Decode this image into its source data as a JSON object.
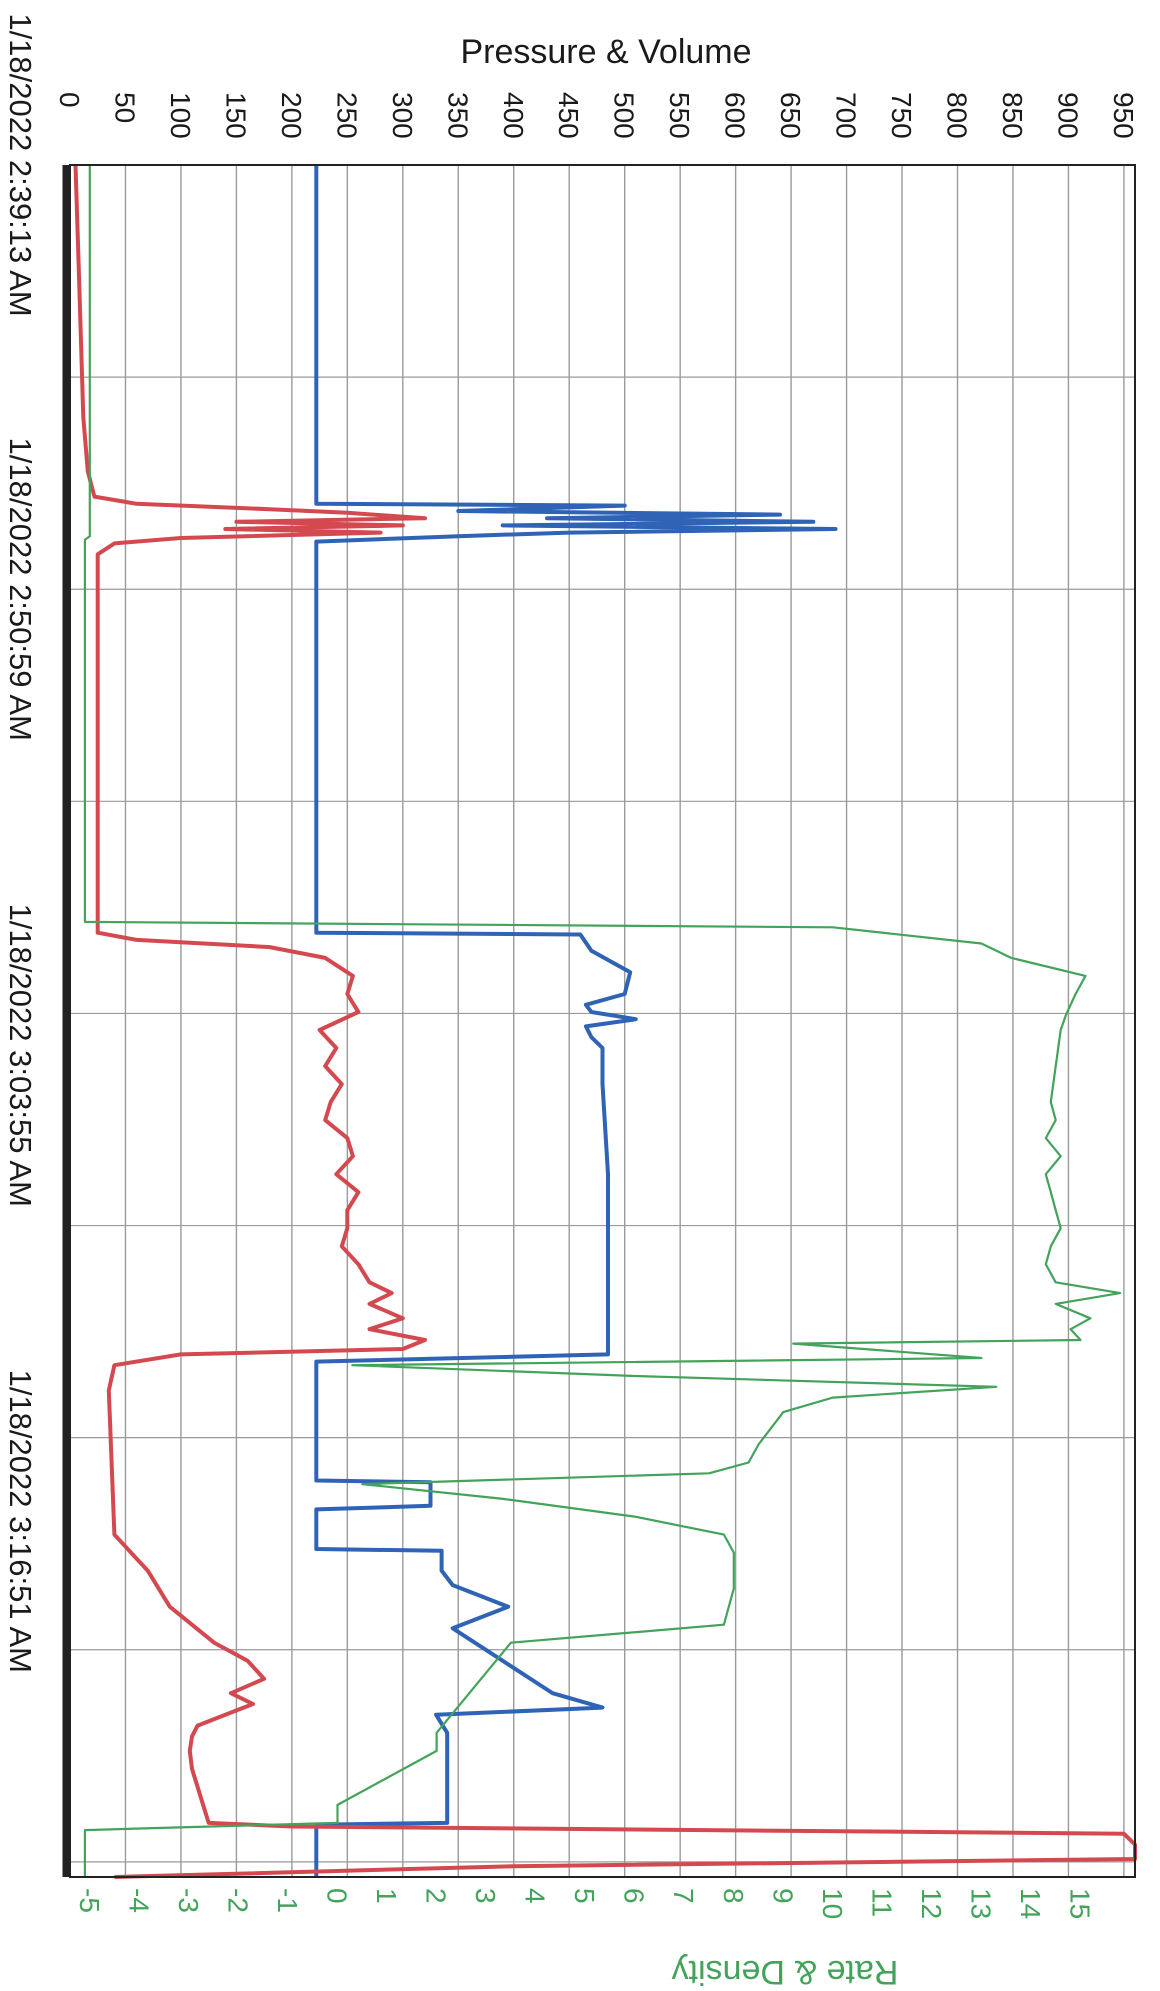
{
  "colors": {
    "pressure": "#2f63b6",
    "volume": "#d4494f",
    "rate_density": "#43a35a",
    "grid": "#9a9a9a",
    "frame": "#222222",
    "text": "#1a1a1a"
  },
  "chart_data": {
    "type": "line",
    "title": "",
    "orientation": "rotated 90° clockwise (time runs top to bottom)",
    "x_axis": {
      "tick_labels": [
        "1/18/2022 2:39:13 AM",
        "1/18/2022 2:50:59 AM",
        "1/18/2022 3:03:55 AM",
        "1/18/2022 3:16:51 AM"
      ],
      "tick_minutes": [
        0,
        11.77,
        24.7,
        37.63
      ],
      "range_minutes": [
        0,
        47.5
      ]
    },
    "primary_axis": {
      "label": "Pressure & Volume",
      "range": [
        0,
        960
      ],
      "ticks": [
        0,
        50,
        100,
        150,
        200,
        250,
        300,
        350,
        400,
        450,
        500,
        550,
        600,
        650,
        700,
        750,
        800,
        850,
        900,
        950
      ]
    },
    "secondary_axis": {
      "label": "Rate & Density",
      "range": [
        -5.4,
        16.1
      ],
      "ticks": [
        -5,
        -4,
        -3,
        -2,
        -1,
        0,
        1,
        2,
        3,
        4,
        5,
        6,
        7,
        8,
        9,
        10,
        11,
        12,
        13,
        14,
        15
      ]
    },
    "grid": true,
    "legend": "none",
    "series": [
      {
        "axis": "primary",
        "color": "#2f63b6",
        "x": [
          0,
          9.4,
          9.45,
          9.6,
          9.7,
          9.8,
          9.9,
          10.0,
          10.1,
          10.2,
          10.3,
          10.45,
          21.3,
          21.35,
          21.8,
          22.4,
          23.0,
          23.3,
          23.5,
          23.7,
          23.9,
          24.2,
          24.5,
          25.5,
          28,
          30,
          33.0,
          33.2,
          36.5,
          36.55,
          37.2,
          37.3,
          38.4,
          38.45,
          39.0,
          39.4,
          40.0,
          40.6,
          41.2,
          41.8,
          42.2,
          42.4,
          42.8,
          43.0,
          43.5,
          46.0,
          46.05,
          47.5
        ],
        "y": [
          222,
          222,
          500,
          350,
          640,
          430,
          670,
          390,
          690,
          450,
          350,
          222,
          222,
          460,
          470,
          505,
          500,
          465,
          470,
          510,
          465,
          470,
          480,
          480,
          485,
          485,
          485,
          222,
          222,
          325,
          325,
          222,
          222,
          335,
          335,
          345,
          395,
          345,
          375,
          405,
          425,
          435,
          480,
          330,
          340,
          340,
          222,
          222
        ]
      },
      {
        "axis": "primary",
        "color": "#d4494f",
        "x": [
          0,
          3,
          5,
          7,
          8.5,
          9.2,
          9.4,
          9.55,
          9.65,
          9.8,
          9.9,
          10.0,
          10.1,
          10.2,
          10.35,
          10.5,
          10.8,
          11.5,
          21.3,
          21.5,
          21.7,
          22.0,
          22.5,
          23.0,
          23.5,
          24.0,
          24.5,
          25.0,
          25.5,
          26.0,
          26.5,
          27.0,
          27.5,
          28.0,
          28.5,
          29.0,
          29.5,
          30.0,
          30.5,
          31.0,
          31.3,
          31.6,
          32.0,
          32.3,
          32.6,
          32.85,
          33.0,
          33.3,
          34.0,
          38.0,
          38.5,
          39.0,
          40.0,
          40.5,
          41.0,
          41.5,
          42.0,
          42.4,
          42.7,
          43.0,
          43.3,
          43.6,
          44.0,
          44.5,
          45.0,
          45.5,
          46.0,
          46.1,
          46.3,
          46.6,
          47.0,
          47.2,
          47.5
        ],
        "y": [
          5,
          8,
          10,
          12,
          16,
          22,
          60,
          180,
          250,
          320,
          150,
          300,
          140,
          280,
          100,
          40,
          25,
          25,
          25,
          60,
          180,
          230,
          255,
          250,
          260,
          225,
          240,
          230,
          245,
          235,
          230,
          250,
          255,
          240,
          260,
          250,
          250,
          245,
          260,
          270,
          290,
          270,
          300,
          270,
          320,
          300,
          100,
          40,
          35,
          40,
          55,
          70,
          90,
          110,
          130,
          160,
          175,
          145,
          165,
          140,
          115,
          110,
          108,
          110,
          115,
          120,
          125,
          200,
          950,
          960,
          960,
          400,
          40
        ]
      },
      {
        "axis": "secondary",
        "color": "#43a35a",
        "x": [
          0,
          10.3,
          10.4,
          21.0,
          21.15,
          21.6,
          22.0,
          22.5,
          23.0,
          23.3,
          23.6,
          24.0,
          25.0,
          26.0,
          26.5,
          27.0,
          27.5,
          28.0,
          28.5,
          29.0,
          29.5,
          30.0,
          30.5,
          31.0,
          31.3,
          31.6,
          32.0,
          32.3,
          32.6,
          32.7,
          33.1,
          33.3,
          33.6,
          33.9,
          34.2,
          34.6,
          35.5,
          36.0,
          36.3,
          36.6,
          37.0,
          37.5,
          38.0,
          38.5,
          39.0,
          39.5,
          40.0,
          40.5,
          41.0,
          43.5,
          44.0,
          45.5,
          46.0,
          46.2,
          47.5
        ],
        "y": [
          -5,
          -5,
          -5.1,
          -5.1,
          10,
          13.0,
          13.6,
          15.1,
          14.9,
          14.8,
          14.7,
          14.6,
          14.5,
          14.4,
          14.5,
          14.3,
          14.6,
          14.3,
          14.4,
          14.5,
          14.6,
          14.4,
          14.3,
          14.5,
          15.8,
          14.5,
          15.2,
          14.8,
          15.0,
          9.2,
          13.0,
          0.3,
          6.0,
          13.3,
          10.0,
          9.0,
          8.5,
          8.3,
          7.5,
          0.5,
          3.3,
          6.0,
          7.8,
          8.0,
          8.0,
          8.0,
          7.9,
          7.8,
          3.5,
          2.0,
          2.0,
          0.0,
          0.0,
          -5.1,
          -5.1
        ]
      }
    ]
  }
}
